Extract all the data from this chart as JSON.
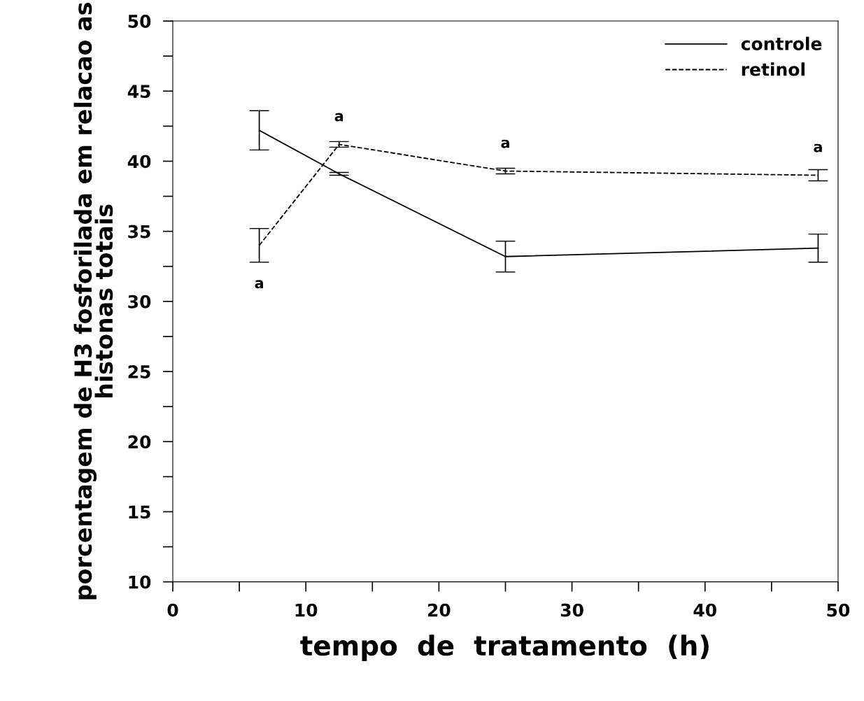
{
  "chart_data": {
    "type": "line",
    "xlabel": "tempo  de  tratamento  (h)",
    "ylabel": "porcentagem de H3 fosforilada em relacao as\nhistonas totais",
    "x": [
      6.5,
      12.5,
      25,
      48.5
    ],
    "series": [
      {
        "name": "controle",
        "color": "#000000",
        "line_style": "solid",
        "values": [
          42.2,
          39.1,
          33.2,
          33.8
        ],
        "errors": [
          1.4,
          0.1,
          1.1,
          1.0
        ]
      },
      {
        "name": "retinol",
        "color": "#000000",
        "line_style": "dashed",
        "values": [
          34.0,
          41.2,
          39.3,
          39.0
        ],
        "errors": [
          1.2,
          0.2,
          0.2,
          0.4
        ]
      }
    ],
    "xlim": [
      0,
      50
    ],
    "ylim": [
      10,
      50
    ],
    "xticks": [
      0,
      {
        "value": 5,
        "label": null
      },
      10,
      {
        "value": 15,
        "label": null
      },
      20,
      {
        "value": 25,
        "label": null
      },
      30,
      {
        "value": 35,
        "label": null
      },
      40,
      {
        "value": 45,
        "label": null
      },
      50
    ],
    "yticks": [
      10,
      {
        "value": 12.5,
        "label": null
      },
      15,
      {
        "value": 17.5,
        "label": null
      },
      20,
      {
        "value": 22.5,
        "label": null
      },
      25,
      {
        "value": 27.5,
        "label": null
      },
      30,
      {
        "value": 32.5,
        "label": null
      },
      35,
      {
        "value": 37.5,
        "label": null
      },
      40,
      {
        "value": 42.5,
        "label": null
      },
      45,
      {
        "value": 47.5,
        "label": null
      },
      50
    ],
    "annotations": [
      {
        "text": "a",
        "x": 6.5,
        "y": 34.0
      },
      {
        "text": "a",
        "x": 12.5,
        "y": 41.2
      },
      {
        "text": "a",
        "x": 25,
        "y": 39.3
      },
      {
        "text": "a",
        "x": 48.5,
        "y": 39.0
      }
    ],
    "legend": "top right",
    "grid": false,
    "marker": "none"
  }
}
